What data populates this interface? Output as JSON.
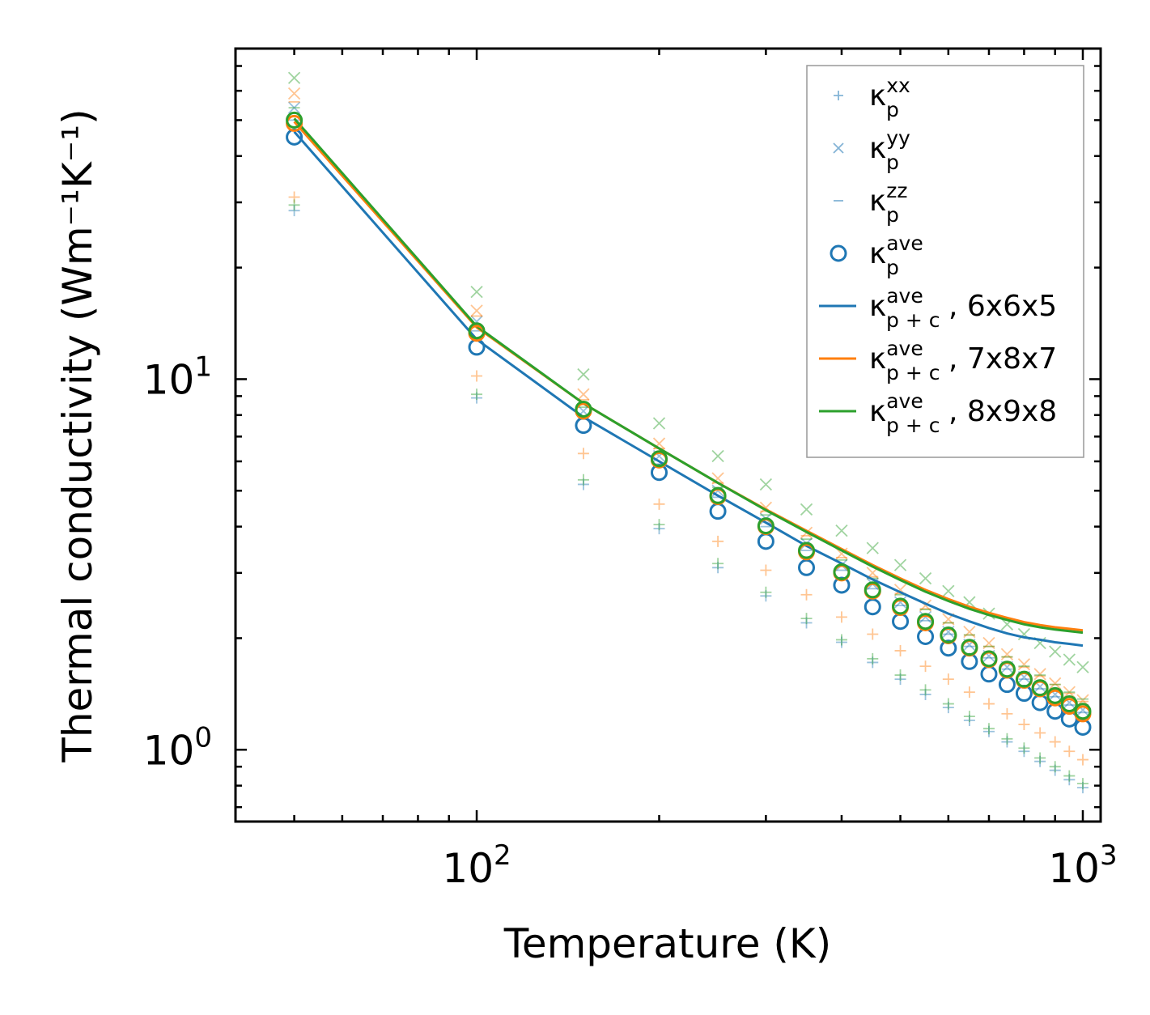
{
  "chart_data": {
    "type": "scatter",
    "scale": "log-log",
    "xlabel": "Temperature (K)",
    "ylabel": "Thermal conductivity (Wm⁻¹K⁻¹)",
    "xlim": [
      40,
      1070
    ],
    "ylim": [
      0.64,
      78
    ],
    "x_ticks": [
      {
        "value": 100,
        "base": "10",
        "exp": "2"
      },
      {
        "value": 1000,
        "base": "10",
        "exp": "3"
      }
    ],
    "y_ticks": [
      {
        "value": 1,
        "base": "10",
        "exp": "0"
      },
      {
        "value": 10,
        "base": "10",
        "exp": "1"
      }
    ],
    "temperatures": [
      50,
      100,
      150,
      200,
      250,
      300,
      350,
      400,
      450,
      500,
      550,
      600,
      650,
      700,
      750,
      800,
      850,
      900,
      950,
      1000
    ],
    "colors": {
      "blue": "#1f77b4",
      "orange": "#ff7f0e",
      "green": "#2ca02c"
    },
    "legend": {
      "position": "top-right",
      "entries": [
        {
          "marker": "plus",
          "color": "#1f77b4",
          "base": "κ",
          "sup": "xx",
          "sub": "p",
          "suffix": ""
        },
        {
          "marker": "x",
          "color": "#1f77b4",
          "base": "κ",
          "sup": "yy",
          "sub": "p",
          "suffix": ""
        },
        {
          "marker": "dash",
          "color": "#1f77b4",
          "base": "κ",
          "sup": "zz",
          "sub": "p",
          "suffix": ""
        },
        {
          "marker": "circle",
          "color": "#1f77b4",
          "base": "κ",
          "sup": "ave",
          "sub": "p",
          "suffix": ""
        },
        {
          "marker": "line",
          "color": "#1f77b4",
          "base": "κ",
          "sup": "ave",
          "sub": "p + c",
          "suffix": ", 6x6x5"
        },
        {
          "marker": "line",
          "color": "#ff7f0e",
          "base": "κ",
          "sup": "ave",
          "sub": "p + c",
          "suffix": ", 7x8x7"
        },
        {
          "marker": "line",
          "color": "#2ca02c",
          "base": "κ",
          "sup": "ave",
          "sub": "p + c",
          "suffix": ", 8x9x8"
        }
      ]
    },
    "series": [
      {
        "name": "kappa_p_xx (6x6x5)",
        "marker": "plus",
        "color": "#1f77b4",
        "alpha": 0.45,
        "values": [
          28.5,
          8.9,
          5.2,
          3.95,
          3.1,
          2.6,
          2.2,
          1.95,
          1.72,
          1.55,
          1.41,
          1.3,
          1.2,
          1.12,
          1.05,
          0.99,
          0.93,
          0.88,
          0.83,
          0.79
        ]
      },
      {
        "name": "kappa_p_yy (6x6x5)",
        "marker": "x",
        "color": "#1f77b4",
        "alpha": 0.45,
        "values": [
          54,
          14.3,
          8.2,
          6.2,
          5.0,
          4.2,
          3.6,
          3.15,
          2.8,
          2.5,
          2.28,
          2.08,
          1.92,
          1.79,
          1.67,
          1.57,
          1.48,
          1.41,
          1.34,
          1.28
        ]
      },
      {
        "name": "kappa_p_zz (6x6x5)",
        "marker": "dash",
        "color": "#1f77b4",
        "alpha": 0.45,
        "values": [
          50,
          13.5,
          7.8,
          5.9,
          4.8,
          4.0,
          3.45,
          3.05,
          2.72,
          2.45,
          2.23,
          2.05,
          1.9,
          1.77,
          1.65,
          1.55,
          1.46,
          1.39,
          1.32,
          1.26
        ]
      },
      {
        "name": "kappa_p_xx (7x8x7)",
        "marker": "plus",
        "color": "#ff7f0e",
        "alpha": 0.45,
        "values": [
          31,
          10.2,
          6.3,
          4.6,
          3.65,
          3.05,
          2.62,
          2.28,
          2.05,
          1.85,
          1.68,
          1.55,
          1.43,
          1.33,
          1.25,
          1.17,
          1.11,
          1.05,
          0.99,
          0.94
        ]
      },
      {
        "name": "kappa_p_yy (7x8x7)",
        "marker": "x",
        "color": "#ff7f0e",
        "alpha": 0.45,
        "values": [
          59,
          15.3,
          9.1,
          6.7,
          5.4,
          4.5,
          3.85,
          3.38,
          3.0,
          2.7,
          2.45,
          2.25,
          2.08,
          1.94,
          1.81,
          1.7,
          1.6,
          1.51,
          1.43,
          1.36
        ]
      },
      {
        "name": "kappa_p_zz (7x8x7)",
        "marker": "dash",
        "color": "#ff7f0e",
        "alpha": 0.45,
        "values": [
          56,
          14.8,
          8.8,
          6.5,
          5.25,
          4.4,
          3.78,
          3.3,
          2.93,
          2.64,
          2.4,
          2.2,
          2.04,
          1.9,
          1.78,
          1.67,
          1.58,
          1.5,
          1.42,
          1.35
        ]
      },
      {
        "name": "kappa_p_xx (8x9x8)",
        "marker": "plus",
        "color": "#2ca02c",
        "alpha": 0.45,
        "values": [
          29.5,
          9.1,
          5.35,
          4.05,
          3.18,
          2.66,
          2.26,
          1.98,
          1.76,
          1.59,
          1.45,
          1.33,
          1.23,
          1.14,
          1.07,
          1.01,
          0.95,
          0.9,
          0.85,
          0.81
        ]
      },
      {
        "name": "kappa_p_yy (8x9x8)",
        "marker": "x",
        "color": "#2ca02c",
        "alpha": 0.45,
        "values": [
          65,
          17.2,
          10.3,
          7.6,
          6.2,
          5.2,
          4.45,
          3.9,
          3.5,
          3.15,
          2.9,
          2.68,
          2.5,
          2.33,
          2.18,
          2.05,
          1.94,
          1.84,
          1.75,
          1.67
        ]
      },
      {
        "name": "kappa_p_zz (8x9x8)",
        "marker": "dash",
        "color": "#2ca02c",
        "alpha": 0.45,
        "values": [
          54,
          14.0,
          8.4,
          6.3,
          5.1,
          4.3,
          3.7,
          3.25,
          2.9,
          2.62,
          2.39,
          2.2,
          2.04,
          1.9,
          1.78,
          1.68,
          1.59,
          1.5,
          1.43,
          1.37
        ]
      },
      {
        "name": "kappa_p_ave (6x6x5)",
        "marker": "circle",
        "color": "#1f77b4",
        "alpha": 1,
        "values": [
          45,
          12.2,
          7.5,
          5.6,
          4.4,
          3.65,
          3.1,
          2.78,
          2.43,
          2.22,
          2.02,
          1.88,
          1.73,
          1.6,
          1.5,
          1.42,
          1.34,
          1.27,
          1.21,
          1.15
        ]
      },
      {
        "name": "kappa_p_ave (7x8x7)",
        "marker": "circle",
        "color": "#ff7f0e",
        "alpha": 1,
        "values": [
          49,
          13.3,
          8.2,
          6.05,
          4.82,
          4.0,
          3.42,
          3.0,
          2.68,
          2.42,
          2.2,
          2.03,
          1.88,
          1.75,
          1.64,
          1.54,
          1.46,
          1.38,
          1.31,
          1.25
        ]
      },
      {
        "name": "kappa_p_ave (8x9x8)",
        "marker": "circle",
        "color": "#2ca02c",
        "alpha": 1,
        "values": [
          50,
          13.5,
          8.3,
          6.1,
          4.85,
          4.02,
          3.45,
          3.02,
          2.7,
          2.44,
          2.22,
          2.04,
          1.89,
          1.76,
          1.65,
          1.55,
          1.47,
          1.4,
          1.33,
          1.27
        ]
      },
      {
        "name": "kappa_p+c_ave, 6x6x5",
        "marker": "line",
        "color": "#1f77b4",
        "alpha": 1,
        "values": [
          46.5,
          12.8,
          7.9,
          6.0,
          4.85,
          4.1,
          3.55,
          3.18,
          2.88,
          2.66,
          2.48,
          2.33,
          2.22,
          2.13,
          2.06,
          2.01,
          1.98,
          1.95,
          1.93,
          1.91
        ]
      },
      {
        "name": "kappa_p+c_ave, 7x8x7",
        "marker": "line",
        "color": "#ff7f0e",
        "alpha": 1,
        "values": [
          49.5,
          13.8,
          8.6,
          6.5,
          5.25,
          4.45,
          3.9,
          3.48,
          3.15,
          2.9,
          2.7,
          2.55,
          2.43,
          2.34,
          2.27,
          2.21,
          2.17,
          2.14,
          2.12,
          2.1
        ]
      },
      {
        "name": "kappa_p+c_ave, 8x9x8",
        "marker": "line",
        "color": "#2ca02c",
        "alpha": 1,
        "values": [
          50.5,
          13.9,
          8.6,
          6.5,
          5.25,
          4.43,
          3.87,
          3.45,
          3.12,
          2.87,
          2.67,
          2.52,
          2.4,
          2.31,
          2.24,
          2.18,
          2.14,
          2.11,
          2.09,
          2.07
        ]
      }
    ]
  }
}
